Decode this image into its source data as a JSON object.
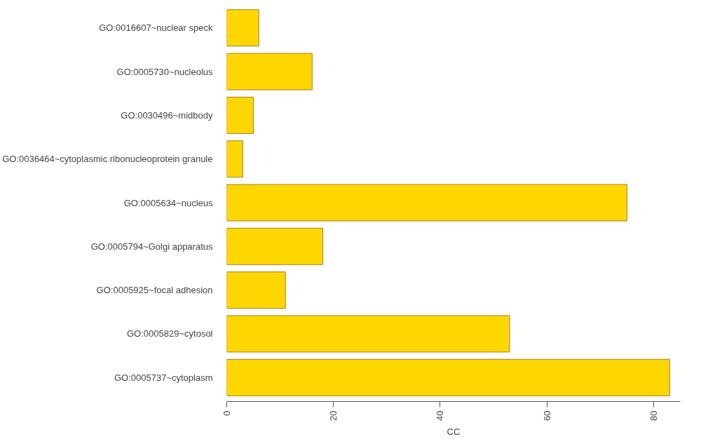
{
  "chart_data": {
    "type": "bar",
    "orientation": "horizontal",
    "xlabel": "CC",
    "categories": [
      "GO:0016607~nuclear speck",
      "GO:0005730~nucleolus",
      "GO:0030496~midbody",
      "GO:0036464~cytoplasmic ribonucleoprotein granule",
      "GO:0005634~nucleus",
      "GO:0005794~Golgi apparatus",
      "GO:0005925~focal adhesion",
      "GO:0005829~cytosol",
      "GO:0005737~cytoplasm"
    ],
    "values": [
      6,
      16,
      5,
      3,
      75,
      18,
      11,
      53,
      83
    ],
    "color": "#ffd700",
    "xlim": [
      0,
      85
    ],
    "xticks": [
      0,
      20,
      40,
      60,
      80
    ],
    "grid": false
  }
}
